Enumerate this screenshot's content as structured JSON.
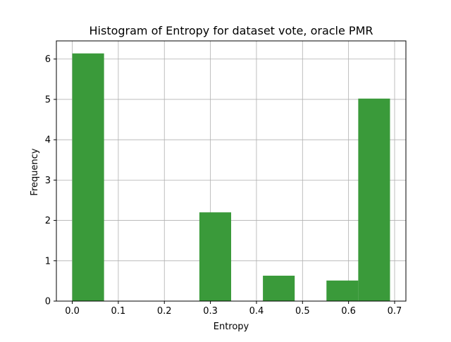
{
  "chart_data": {
    "type": "bar",
    "title": "Histogram of Entropy for dataset vote, oracle PMR",
    "xlabel": "Entropy",
    "ylabel": "Frequency",
    "xlim": [
      -0.0345,
      0.7245
    ],
    "ylim": [
      0,
      6.45
    ],
    "grid": true,
    "bar_color": "#3a9a3a",
    "grid_color": "#b0b0b0",
    "x_ticks": [
      {
        "value": 0.0,
        "label": "0.0"
      },
      {
        "value": 0.1,
        "label": "0.1"
      },
      {
        "value": 0.2,
        "label": "0.2"
      },
      {
        "value": 0.3,
        "label": "0.3"
      },
      {
        "value": 0.4,
        "label": "0.4"
      },
      {
        "value": 0.5,
        "label": "0.5"
      },
      {
        "value": 0.6,
        "label": "0.6"
      },
      {
        "value": 0.7,
        "label": "0.7"
      }
    ],
    "y_ticks": [
      {
        "value": 0,
        "label": "0"
      },
      {
        "value": 1,
        "label": "1"
      },
      {
        "value": 2,
        "label": "2"
      },
      {
        "value": 3,
        "label": "3"
      },
      {
        "value": 4,
        "label": "4"
      },
      {
        "value": 5,
        "label": "5"
      },
      {
        "value": 6,
        "label": "6"
      }
    ],
    "bins": [
      {
        "x0": 0.0,
        "x1": 0.069,
        "value": 6.14
      },
      {
        "x0": 0.069,
        "x1": 0.138,
        "value": 0
      },
      {
        "x0": 0.138,
        "x1": 0.207,
        "value": 0
      },
      {
        "x0": 0.207,
        "x1": 0.276,
        "value": 0
      },
      {
        "x0": 0.276,
        "x1": 0.345,
        "value": 2.2
      },
      {
        "x0": 0.345,
        "x1": 0.414,
        "value": 0
      },
      {
        "x0": 0.414,
        "x1": 0.483,
        "value": 0.63
      },
      {
        "x0": 0.483,
        "x1": 0.552,
        "value": 0
      },
      {
        "x0": 0.552,
        "x1": 0.621,
        "value": 0.51
      },
      {
        "x0": 0.621,
        "x1": 0.69,
        "value": 5.02
      }
    ]
  }
}
